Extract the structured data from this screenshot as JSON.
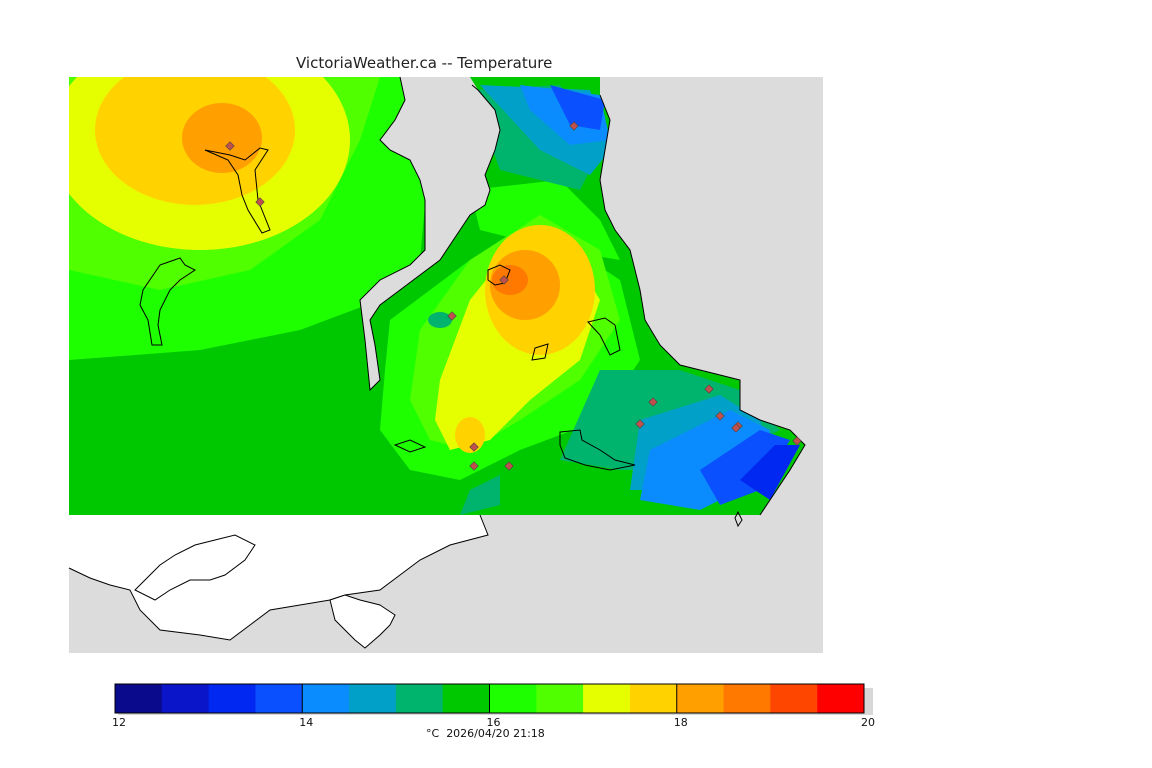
{
  "title": "VictoriaWeather.ca -- Temperature",
  "legend": {
    "unit": "°C",
    "timestamp": "2026/04/20 21:18",
    "ticks": [
      "12",
      "14",
      "16",
      "18",
      "20"
    ],
    "range": [
      12,
      20
    ],
    "step": 0.5,
    "colors": [
      "#0a0a8c",
      "#0a14c8",
      "#0028f0",
      "#0a50ff",
      "#0a8cff",
      "#00a0c8",
      "#00b46e",
      "#00c800",
      "#1eff00",
      "#50ff00",
      "#e6ff00",
      "#ffd200",
      "#ffa000",
      "#ff7800",
      "#ff4600",
      "#ff0000"
    ]
  },
  "map": {
    "land_color": "#dcdcdc",
    "water_color": "#ffffff",
    "station_color": "#c0504d",
    "stations": [
      {
        "temp": 18.6
      },
      {
        "temp": 16.8
      },
      {
        "temp": 13.4
      },
      {
        "temp": 19.2
      },
      {
        "temp": 15.2
      },
      {
        "temp": 17.5
      },
      {
        "temp": 16.2
      },
      {
        "temp": 16.1
      },
      {
        "temp": 14.9
      },
      {
        "temp": 14.7
      },
      {
        "temp": 14.3
      },
      {
        "temp": 14.2
      },
      {
        "temp": 13.5
      },
      {
        "temp": 12.9
      }
    ]
  }
}
